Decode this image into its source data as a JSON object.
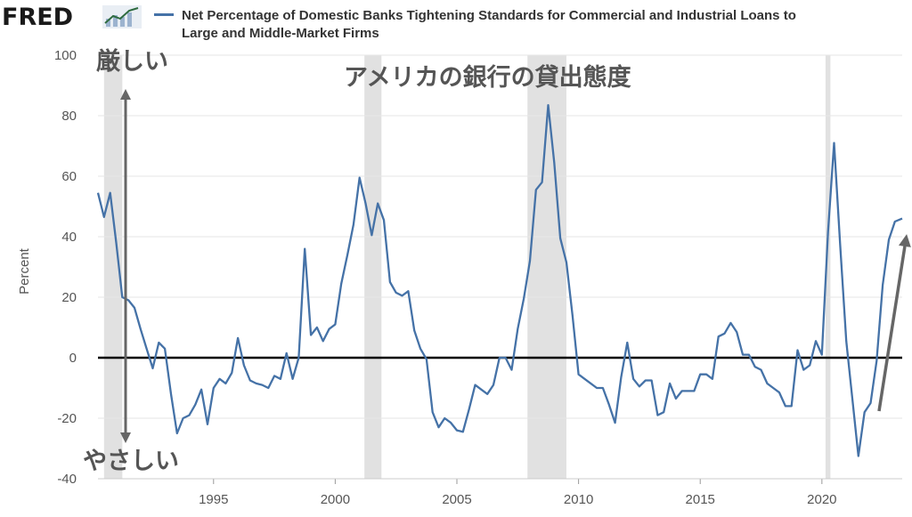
{
  "header": {
    "logo": "FRED",
    "legend": "Net Percentage of Domestic Banks Tightening Standards for Commercial and Industrial Loans to Large and Middle-Market Firms",
    "series_color": "#4572a7"
  },
  "annotations": {
    "title": "アメリカの銀行の貸出態度",
    "strict": "厳しい",
    "easy": "やさしい",
    "arrow_color": "#666666"
  },
  "chart_data": {
    "type": "line",
    "ylabel": "Percent",
    "xlabel": "",
    "ylim": [
      -40,
      100
    ],
    "xlim": [
      1990.25,
      2023.3
    ],
    "x_ticks": [
      1995,
      2000,
      2005,
      2010,
      2015,
      2020
    ],
    "y_ticks": [
      -40,
      -20,
      0,
      20,
      40,
      60,
      80,
      100
    ],
    "recessions": [
      [
        1990.5,
        1991.25
      ],
      [
        2001.2,
        2001.9
      ],
      [
        2007.9,
        2009.5
      ],
      [
        2020.15,
        2020.35
      ]
    ],
    "series": [
      {
        "name": "Net Percentage of Domestic Banks Tightening Standards for Commercial and Industrial Loans to Large and Middle-Market Firms",
        "color": "#4572a7",
        "points": [
          [
            1990.25,
            54.5
          ],
          [
            1990.5,
            46.5
          ],
          [
            1990.75,
            54.5
          ],
          [
            1991.0,
            38.0
          ],
          [
            1991.25,
            20.0
          ],
          [
            1991.5,
            19.0
          ],
          [
            1991.75,
            16.5
          ],
          [
            1992.0,
            9.5
          ],
          [
            1992.25,
            3.0
          ],
          [
            1992.5,
            -3.5
          ],
          [
            1992.75,
            5.0
          ],
          [
            1993.0,
            3.0
          ],
          [
            1993.25,
            -12.0
          ],
          [
            1993.5,
            -25.0
          ],
          [
            1993.75,
            -20.0
          ],
          [
            1994.0,
            -19.0
          ],
          [
            1994.25,
            -15.5
          ],
          [
            1994.5,
            -10.5
          ],
          [
            1994.75,
            -22.0
          ],
          [
            1995.0,
            -10.0
          ],
          [
            1995.25,
            -7.0
          ],
          [
            1995.5,
            -8.5
          ],
          [
            1995.75,
            -5.0
          ],
          [
            1996.0,
            6.5
          ],
          [
            1996.25,
            -2.5
          ],
          [
            1996.5,
            -7.5
          ],
          [
            1996.75,
            -8.5
          ],
          [
            1997.0,
            -9.0
          ],
          [
            1997.25,
            -10.0
          ],
          [
            1997.5,
            -6.0
          ],
          [
            1997.75,
            -7.0
          ],
          [
            1998.0,
            1.5
          ],
          [
            1998.25,
            -7.0
          ],
          [
            1998.5,
            0.0
          ],
          [
            1998.75,
            36.0
          ],
          [
            1999.0,
            7.5
          ],
          [
            1999.25,
            10.0
          ],
          [
            1999.5,
            5.5
          ],
          [
            1999.75,
            9.5
          ],
          [
            2000.0,
            11.0
          ],
          [
            2000.25,
            24.5
          ],
          [
            2000.5,
            34.0
          ],
          [
            2000.75,
            44.0
          ],
          [
            2001.0,
            59.5
          ],
          [
            2001.25,
            51.0
          ],
          [
            2001.5,
            40.5
          ],
          [
            2001.75,
            51.0
          ],
          [
            2002.0,
            45.5
          ],
          [
            2002.25,
            25.0
          ],
          [
            2002.5,
            21.5
          ],
          [
            2002.75,
            20.5
          ],
          [
            2003.0,
            22.0
          ],
          [
            2003.25,
            9.0
          ],
          [
            2003.5,
            3.0
          ],
          [
            2003.75,
            -0.5
          ],
          [
            2004.0,
            -18.0
          ],
          [
            2004.25,
            -23.0
          ],
          [
            2004.5,
            -20.0
          ],
          [
            2004.75,
            -21.5
          ],
          [
            2005.0,
            -24.0
          ],
          [
            2005.25,
            -24.5
          ],
          [
            2005.5,
            -17.0
          ],
          [
            2005.75,
            -9.0
          ],
          [
            2006.0,
            -10.5
          ],
          [
            2006.25,
            -12.0
          ],
          [
            2006.5,
            -9.0
          ],
          [
            2006.75,
            0.0
          ],
          [
            2007.0,
            0.0
          ],
          [
            2007.25,
            -4.0
          ],
          [
            2007.5,
            9.5
          ],
          [
            2007.75,
            19.5
          ],
          [
            2008.0,
            32.0
          ],
          [
            2008.25,
            55.5
          ],
          [
            2008.5,
            58.0
          ],
          [
            2008.75,
            83.5
          ],
          [
            2009.0,
            64.5
          ],
          [
            2009.25,
            39.5
          ],
          [
            2009.5,
            31.5
          ],
          [
            2009.75,
            14.0
          ],
          [
            2010.0,
            -5.5
          ],
          [
            2010.25,
            -7.0
          ],
          [
            2010.5,
            -8.5
          ],
          [
            2010.75,
            -10.0
          ],
          [
            2011.0,
            -10.0
          ],
          [
            2011.25,
            -15.5
          ],
          [
            2011.5,
            -21.5
          ],
          [
            2011.75,
            -6.5
          ],
          [
            2012.0,
            5.0
          ],
          [
            2012.25,
            -7.0
          ],
          [
            2012.5,
            -9.5
          ],
          [
            2012.75,
            -7.5
          ],
          [
            2013.0,
            -7.5
          ],
          [
            2013.25,
            -19.0
          ],
          [
            2013.5,
            -18.0
          ],
          [
            2013.75,
            -8.5
          ],
          [
            2014.0,
            -13.5
          ],
          [
            2014.25,
            -11.0
          ],
          [
            2014.5,
            -11.0
          ],
          [
            2014.75,
            -11.0
          ],
          [
            2015.0,
            -5.5
          ],
          [
            2015.25,
            -5.5
          ],
          [
            2015.5,
            -7.0
          ],
          [
            2015.75,
            7.0
          ],
          [
            2016.0,
            8.0
          ],
          [
            2016.25,
            11.5
          ],
          [
            2016.5,
            8.5
          ],
          [
            2016.75,
            1.0
          ],
          [
            2017.0,
            1.0
          ],
          [
            2017.25,
            -3.0
          ],
          [
            2017.5,
            -4.0
          ],
          [
            2017.75,
            -8.5
          ],
          [
            2018.0,
            -10.0
          ],
          [
            2018.25,
            -11.5
          ],
          [
            2018.5,
            -16.0
          ],
          [
            2018.75,
            -16.0
          ],
          [
            2019.0,
            2.5
          ],
          [
            2019.25,
            -4.0
          ],
          [
            2019.5,
            -2.5
          ],
          [
            2019.75,
            5.5
          ],
          [
            2020.0,
            1.0
          ],
          [
            2020.25,
            41.5
          ],
          [
            2020.5,
            71.0
          ],
          [
            2020.75,
            37.5
          ],
          [
            2021.0,
            5.5
          ],
          [
            2021.25,
            -13.5
          ],
          [
            2021.5,
            -32.5
          ],
          [
            2021.75,
            -18.0
          ],
          [
            2022.0,
            -15.0
          ],
          [
            2022.25,
            -1.0
          ],
          [
            2022.5,
            24.0
          ],
          [
            2022.75,
            39.0
          ],
          [
            2023.0,
            45.0
          ],
          [
            2023.3,
            46.0
          ]
        ]
      }
    ]
  }
}
